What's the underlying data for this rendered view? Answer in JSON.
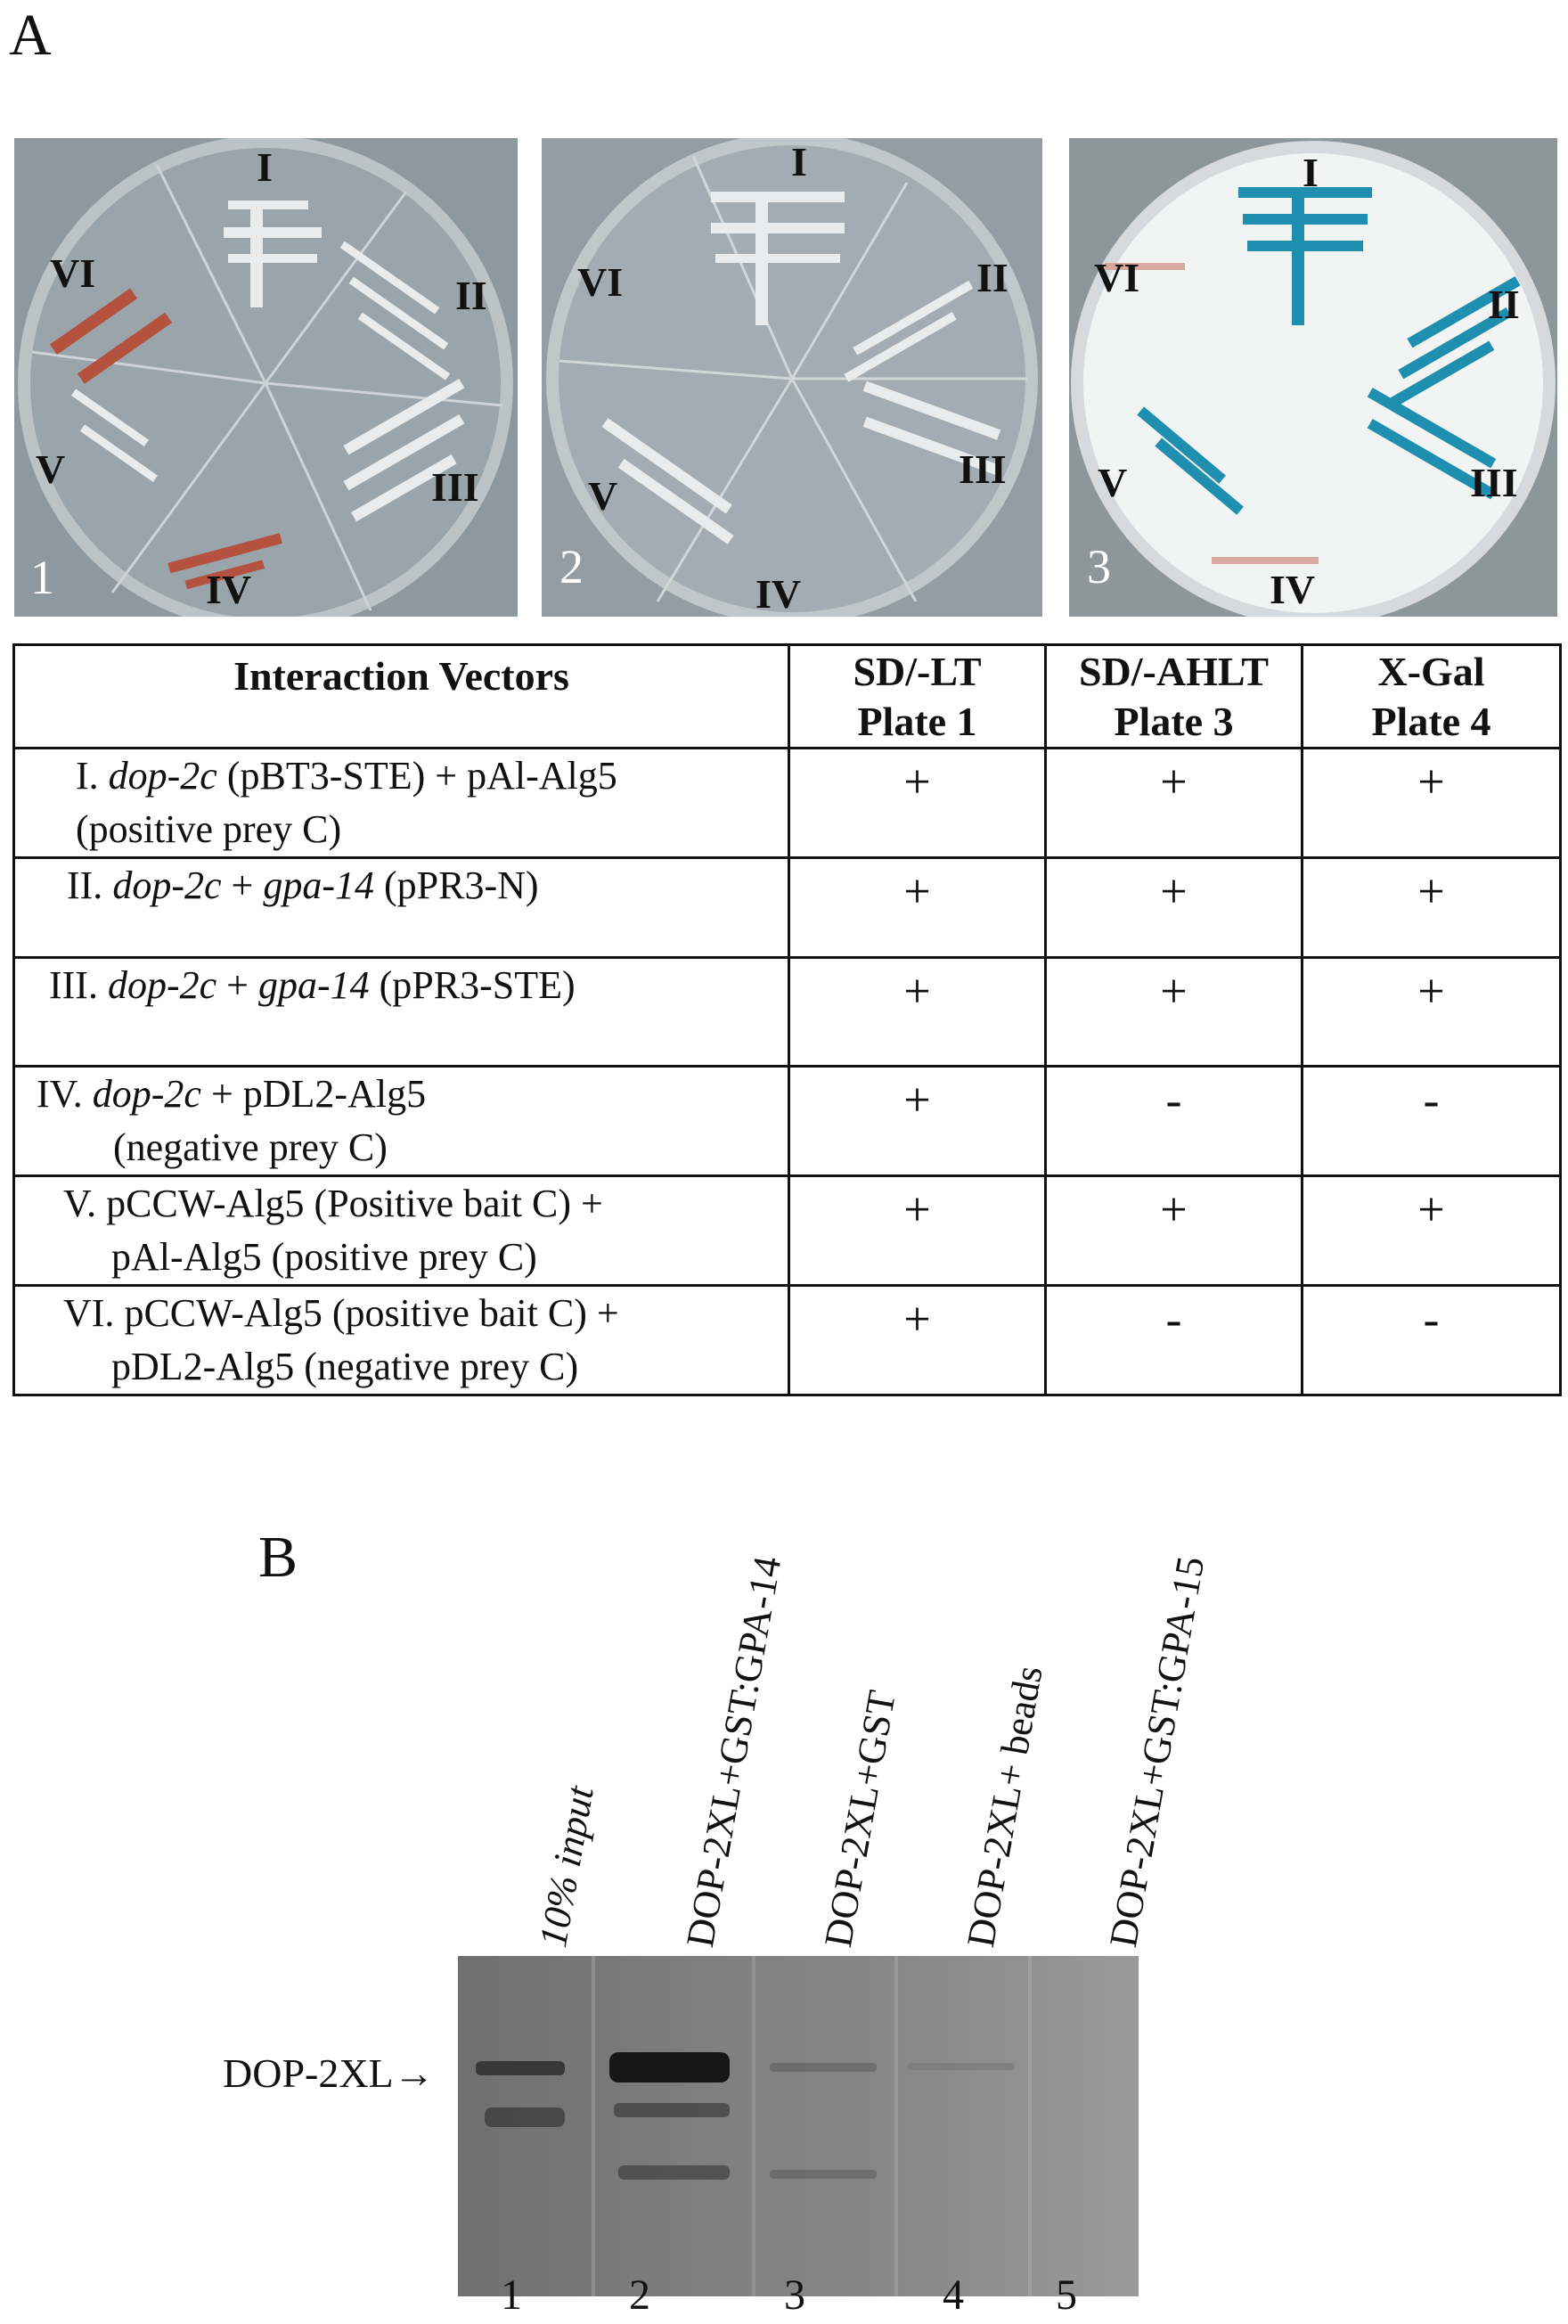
{
  "panel_a": {
    "letter": "A",
    "plates": [
      {
        "number": "1",
        "sections": [
          "I",
          "II",
          "III",
          "IV",
          "V",
          "VI"
        ],
        "bg": "#9aa4ab"
      },
      {
        "number": "2",
        "sections": [
          "I",
          "II",
          "III",
          "IV",
          "V",
          "VI"
        ],
        "bg": "#a3acb2"
      },
      {
        "number": "3",
        "sections": [
          "I",
          "II",
          "III",
          "IV",
          "V",
          "VI"
        ],
        "bg": "#f2f3f3"
      }
    ],
    "table": {
      "headers": {
        "vectors": "Interaction Vectors",
        "col1_line1": "SD/-LT",
        "col1_line2": "Plate 1",
        "col2_line1": "SD/-AHLT",
        "col2_line2": "Plate 3",
        "col3_line1": "X-Gal",
        "col3_line2": "Plate 4"
      },
      "rows": [
        {
          "prefix": "I.",
          "italic1": "dop-2c",
          "text1": " (pBT3-STE) + pAl-Alg5",
          "line2": "(positive prey  C)",
          "r1": "+",
          "r2": "+",
          "r3": "+"
        },
        {
          "prefix": "II.",
          "italic1": "dop-2c",
          "text1": " + ",
          "italic2": "gpa-14",
          "text2": " (pPR3-N)",
          "line2": "",
          "r1": "+",
          "r2": "+",
          "r3": "+"
        },
        {
          "prefix": "III.",
          "italic1": "dop-2c",
          "text1": " + ",
          "italic2": "gpa-14",
          "text2": " (pPR3-STE)",
          "line2": "",
          "r1": "+",
          "r2": "+",
          "r3": "+"
        },
        {
          "prefix": "IV.",
          "italic1": "dop-2c",
          "text1": " + pDL2-Alg5",
          "line2": "(negative prey C)",
          "r1": "+",
          "r2": "-",
          "r3": "-"
        },
        {
          "prefix": "V.",
          "italic1": "",
          "text1": "pCCW-Alg5 (Positive bait C) +",
          "line2": "pAl-Alg5 (positive prey C)",
          "r1": "+",
          "r2": "+",
          "r3": "+"
        },
        {
          "prefix": "VI.",
          "italic1": "",
          "text1": "pCCW-Alg5 (positive bait C) +",
          "line2": "pDL2-Alg5 (negative prey  C)",
          "r1": "+",
          "r2": "-",
          "r3": "-"
        }
      ]
    }
  },
  "panel_b": {
    "letter": "B",
    "lanes": [
      {
        "label": "10% input",
        "italic": true,
        "number": "1"
      },
      {
        "label": "DOP-2XL+GST:GPA-14",
        "italic": false,
        "number": "2"
      },
      {
        "label": "DOP-2XL+GST",
        "italic": false,
        "number": "3"
      },
      {
        "label": "DOP-2XL+ beads",
        "italic_part": "beads",
        "number": "4"
      },
      {
        "label": "DOP-2XL+GST:GPA-15",
        "italic": false,
        "number": "5"
      }
    ],
    "band_label": "DOP-2XL",
    "arrow": "→"
  },
  "colors": {
    "blue_colony": "#1f8fb0",
    "red_colony": "#b5523f",
    "white_colony": "#e9ecec"
  }
}
